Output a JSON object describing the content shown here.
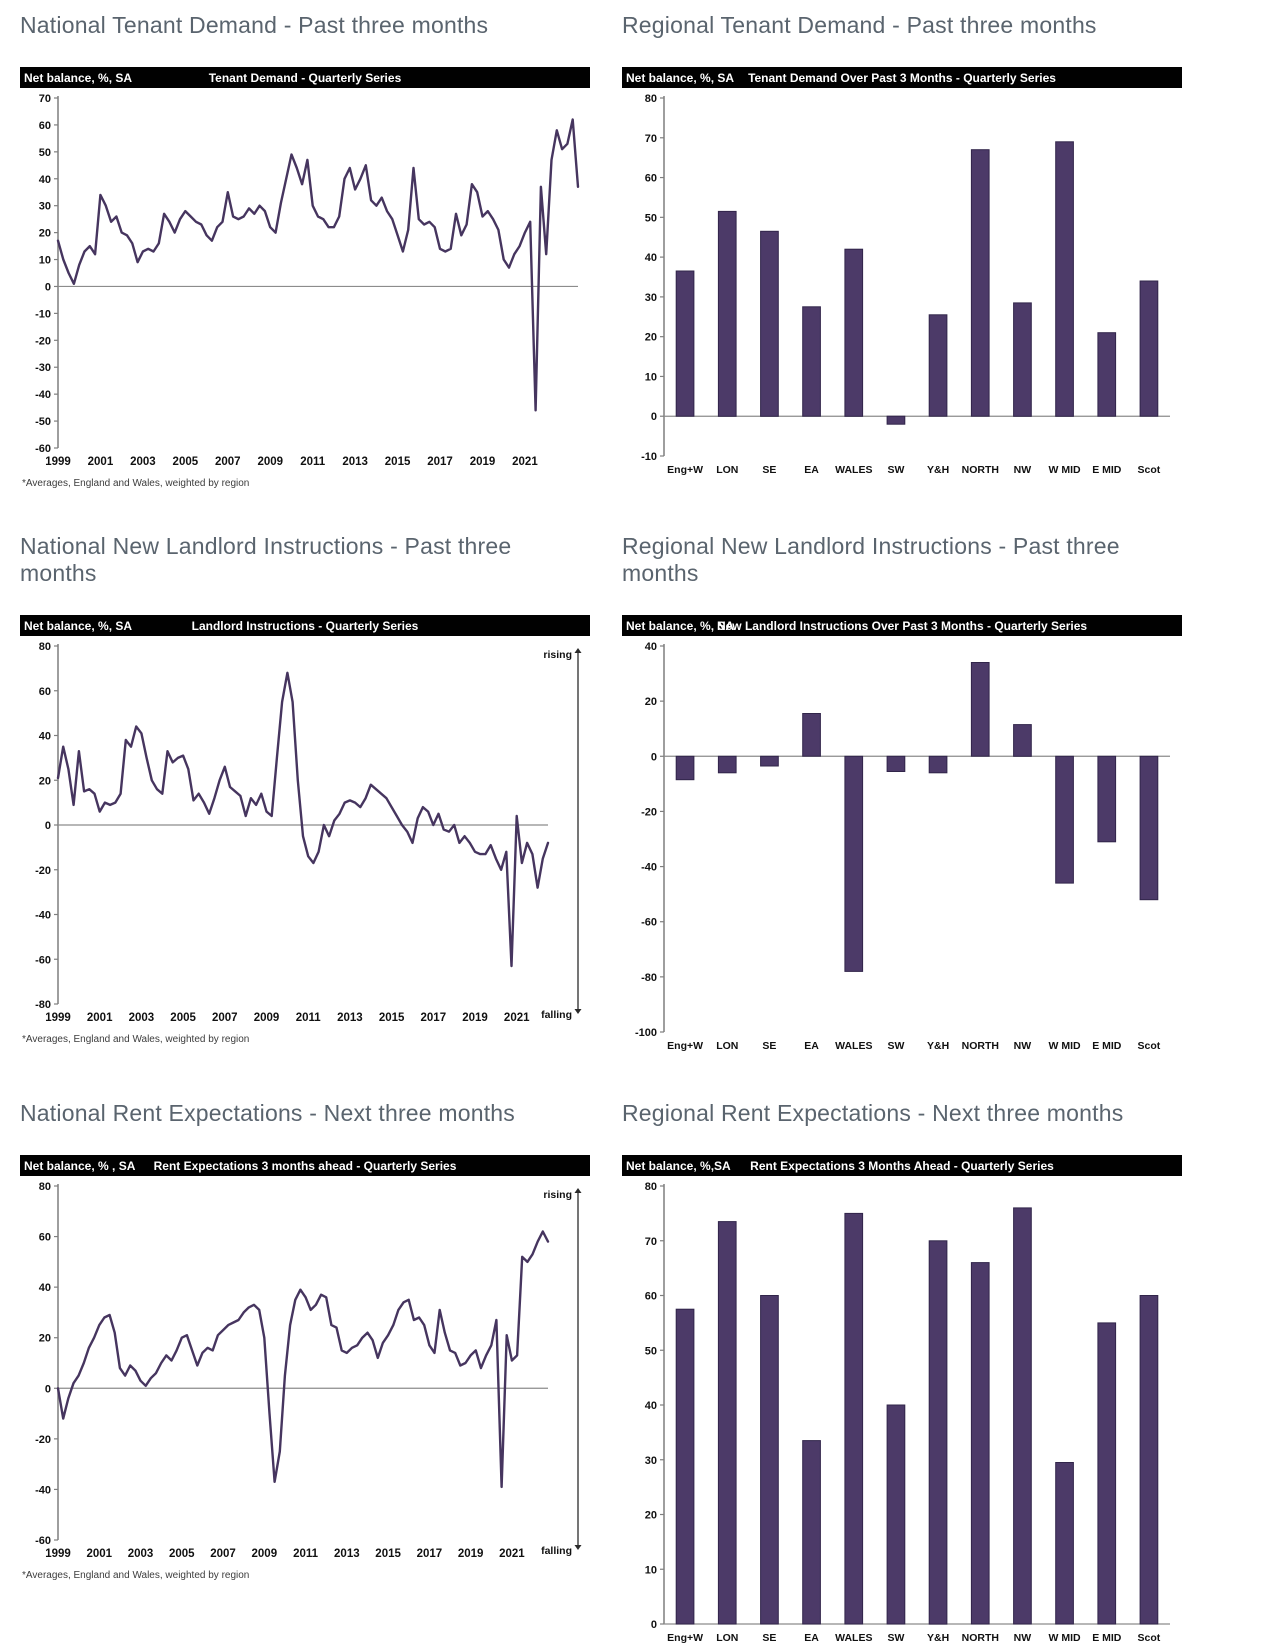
{
  "document": {
    "footnote": "*Averages, England and Wales, weighted by region"
  },
  "colors": {
    "line": "#46355f",
    "bar": "#4c3a68",
    "bar_edge": "#31254a",
    "header_bg": "#010101",
    "header_text": "#ffffff",
    "panel_title": "#5a646e",
    "axis_line": "#7f7f7f",
    "zero_line": "#8c8c8c",
    "arrow": "#2b2b2b"
  },
  "arrow_labels": {
    "top": "rising",
    "bottom": "falling"
  },
  "chart_data": [
    {
      "id": "national-tenant-demand",
      "type": "line",
      "panel_title": "National Tenant Demand - Past three months",
      "header_left": "Net balance, %, SA",
      "title": "Tenant Demand - Quarterly Series",
      "x_start_year": 1999,
      "x_frequency": "quarterly",
      "x_tick_labels": [
        "1999",
        "2001",
        "2003",
        "2005",
        "2007",
        "2009",
        "2011",
        "2013",
        "2015",
        "2017",
        "2019",
        "2021"
      ],
      "ylim": [
        -60,
        70
      ],
      "ytick_step": 10,
      "grid": false,
      "values": [
        17,
        10,
        5,
        1,
        8,
        13,
        15,
        12,
        34,
        30,
        24,
        26,
        20,
        19,
        16,
        9,
        13,
        14,
        13,
        16,
        27,
        24,
        20,
        25,
        28,
        26,
        24,
        23,
        19,
        17,
        22,
        24,
        35,
        26,
        25,
        26,
        29,
        27,
        30,
        28,
        22,
        20,
        31,
        40,
        49,
        44,
        38,
        47,
        30,
        26,
        25,
        22,
        22,
        26,
        40,
        44,
        36,
        40,
        45,
        32,
        30,
        33,
        28,
        25,
        19,
        13,
        21,
        44,
        25,
        23,
        24,
        22,
        14,
        13,
        14,
        27,
        19,
        23,
        38,
        35,
        26,
        28,
        25,
        21,
        10,
        7,
        12,
        15,
        20,
        24,
        -46,
        37,
        12,
        47,
        58,
        51,
        53,
        62,
        37
      ],
      "footnote": true,
      "arrow": false
    },
    {
      "id": "regional-tenant-demand",
      "type": "bar",
      "panel_title": "Regional Tenant Demand - Past three months",
      "header_left": "Net balance, %, SA",
      "title": "Tenant Demand Over Past 3 Months - Quarterly Series",
      "categories": [
        "Eng+W",
        "LON",
        "SE",
        "EA",
        "WALES",
        "SW",
        "Y&H",
        "NORTH",
        "NW",
        "W MID",
        "E MID",
        "Scot"
      ],
      "values": [
        36.5,
        51.5,
        46.5,
        27.5,
        42,
        -2,
        25.5,
        67,
        28.5,
        69,
        21,
        34
      ],
      "ylim": [
        -10,
        80
      ],
      "ytick_step": 10,
      "grid": false,
      "footnote": false,
      "arrow": false
    },
    {
      "id": "national-new-landlord-instructions",
      "type": "line",
      "panel_title": "National New Landlord Instructions - Past three months",
      "header_left": "Net balance, %, SA",
      "title": "Landlord Instructions - Quarterly Series",
      "x_start_year": 1999,
      "x_frequency": "quarterly",
      "x_tick_labels": [
        "1999",
        "2001",
        "2003",
        "2005",
        "2007",
        "2009",
        "2011",
        "2013",
        "2015",
        "2017",
        "2019",
        "2021"
      ],
      "ylim": [
        -80,
        80
      ],
      "ytick_step": 20,
      "grid": false,
      "values": [
        21,
        35,
        25,
        9,
        33,
        15,
        16,
        14,
        6,
        10,
        9,
        10,
        14,
        38,
        35,
        44,
        41,
        30,
        20,
        16,
        14,
        33,
        28,
        30,
        31,
        25,
        11,
        14,
        10,
        5,
        12,
        20,
        26,
        17,
        15,
        13,
        4,
        12,
        9,
        14,
        6,
        4,
        30,
        55,
        68,
        55,
        20,
        -5,
        -14,
        -17,
        -12,
        0,
        -5,
        2,
        5,
        10,
        11,
        10,
        8,
        12,
        18,
        16,
        14,
        12,
        8,
        4,
        0,
        -3,
        -8,
        3,
        8,
        6,
        0,
        5,
        -2,
        -3,
        0,
        -8,
        -5,
        -8,
        -12,
        -13,
        -13,
        -9,
        -15,
        -20,
        -12,
        -63,
        4,
        -17,
        -8,
        -13,
        -28,
        -15,
        -8
      ],
      "footnote": true,
      "arrow": true
    },
    {
      "id": "regional-new-landlord-instructions",
      "type": "bar",
      "panel_title": "Regional New Landlord Instructions - Past three months",
      "header_left": "Net balance, %, SA",
      "title": "New Landlord Instructions Over Past 3 Months - Quarterly Series",
      "categories": [
        "Eng+W",
        "LON",
        "SE",
        "EA",
        "WALES",
        "SW",
        "Y&H",
        "NORTH",
        "NW",
        "W MID",
        "E MID",
        "Scot"
      ],
      "values": [
        -8.5,
        -6,
        -3.5,
        15.5,
        -78,
        -5.5,
        -6,
        34,
        11.5,
        -46,
        -31,
        -52
      ],
      "ylim": [
        -100,
        40
      ],
      "ytick_step": 20,
      "grid": false,
      "footnote": false,
      "arrow": false
    },
    {
      "id": "national-rent-expectations",
      "type": "line",
      "panel_title": "National Rent Expectations - Next three months",
      "header_left": "Net balance, % , SA",
      "title": "Rent Expectations 3 months ahead - Quarterly Series",
      "x_start_year": 1999,
      "x_frequency": "quarterly",
      "x_tick_labels": [
        "1999",
        "2001",
        "2003",
        "2005",
        "2007",
        "2009",
        "2011",
        "2013",
        "2015",
        "2017",
        "2019",
        "2021"
      ],
      "ylim": [
        -60,
        80
      ],
      "ytick_step": 20,
      "grid": false,
      "values": [
        0,
        -12,
        -4,
        2,
        5,
        10,
        16,
        20,
        25,
        28,
        29,
        22,
        8,
        5,
        9,
        7,
        3,
        1,
        4,
        6,
        10,
        13,
        11,
        15,
        20,
        21,
        15,
        9,
        14,
        16,
        15,
        21,
        23,
        25,
        26,
        27,
        30,
        32,
        33,
        31,
        20,
        -10,
        -37,
        -25,
        5,
        25,
        35,
        39,
        36,
        31,
        33,
        37,
        36,
        25,
        24,
        15,
        14,
        16,
        17,
        20,
        22,
        19,
        12,
        18,
        21,
        25,
        31,
        34,
        35,
        27,
        28,
        25,
        17,
        14,
        31,
        22,
        15,
        14,
        9,
        10,
        13,
        15,
        8,
        13,
        17,
        27,
        -39,
        21,
        11,
        13,
        52,
        50,
        53,
        58,
        62,
        58
      ],
      "footnote": true,
      "arrow": true
    },
    {
      "id": "regional-rent-expectations",
      "type": "bar",
      "panel_title": "Regional Rent Expectations - Next three months",
      "header_left": "Net balance, %,SA",
      "title": "Rent Expectations 3 Months Ahead - Quarterly Series",
      "categories": [
        "Eng+W",
        "LON",
        "SE",
        "EA",
        "WALES",
        "SW",
        "Y&H",
        "NORTH",
        "NW",
        "W MID",
        "E MID",
        "Scot"
      ],
      "values": [
        57.5,
        73.5,
        60,
        33.5,
        75,
        40,
        70,
        66,
        76,
        29.5,
        55,
        60
      ],
      "ylim": [
        0,
        80
      ],
      "ytick_step": 10,
      "grid": false,
      "footnote": false,
      "arrow": false
    }
  ]
}
